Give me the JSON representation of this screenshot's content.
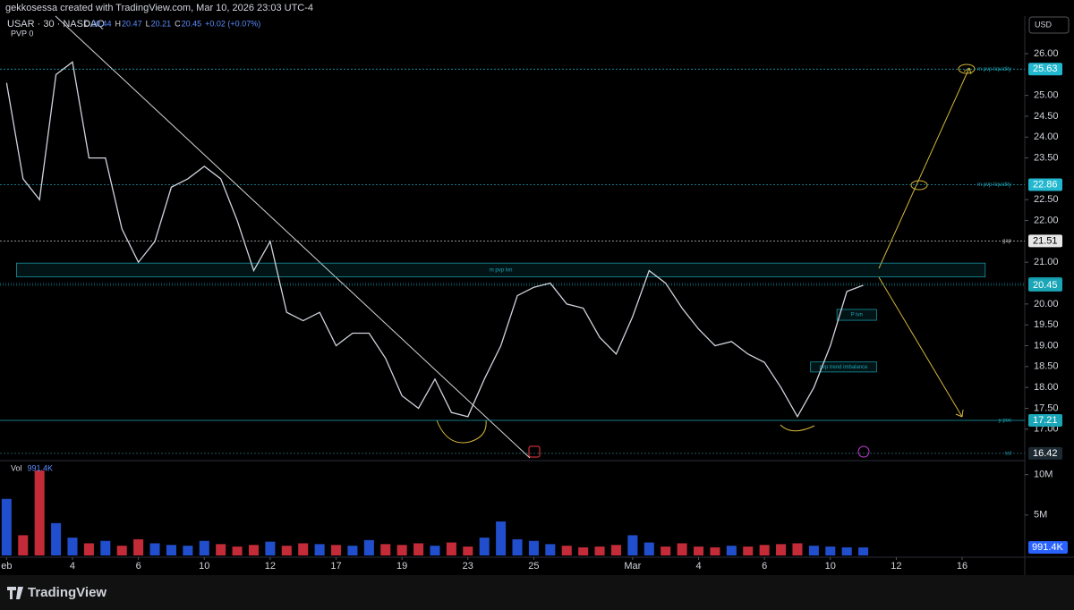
{
  "header": {
    "creator": "gekkosessa created with TradingView.com, Mar 10, 2026 23:03 UTC-4",
    "symbol": "USAR · 30 · NASDAQ",
    "ohlc": [
      {
        "label": "O",
        "value": 20.44
      },
      {
        "label": "H",
        "value": 20.47
      },
      {
        "label": "L",
        "value": 20.21
      },
      {
        "label": "C",
        "value": 20.45
      }
    ],
    "change": "+0.02 (+0.07%)",
    "indicator": "PVP  0"
  },
  "currency": "USD",
  "brand": "TradingView",
  "chart_data": [
    {
      "type": "line",
      "color": "#cfd3dc",
      "x": [
        0,
        0.5,
        1,
        1.5,
        2,
        2.5,
        3,
        3.5,
        4,
        4.5,
        5,
        5.5,
        6,
        6.5,
        7,
        7.5,
        8,
        8.5,
        9,
        9.5,
        10,
        10.5,
        11,
        11.5,
        12,
        12.5,
        13,
        13.5,
        14,
        14.5,
        15,
        15.5,
        16,
        16.5,
        17,
        17.5,
        18,
        18.5,
        19,
        19.5,
        20,
        20.5,
        21,
        21.5,
        22,
        22.5,
        23,
        23.5,
        24,
        24.5,
        25,
        25.5,
        26
      ],
      "values": [
        25.3,
        23.0,
        22.5,
        25.5,
        25.8,
        23.5,
        23.5,
        21.8,
        21.0,
        21.5,
        22.8,
        23.0,
        23.3,
        23.0,
        22.0,
        20.8,
        21.5,
        19.8,
        19.6,
        19.8,
        19.0,
        19.3,
        19.3,
        18.7,
        17.8,
        17.5,
        18.2,
        17.4,
        17.3,
        18.2,
        19.0,
        20.2,
        20.4,
        20.5,
        20.0,
        19.9,
        19.2,
        18.8,
        19.7,
        20.8,
        20.5,
        19.9,
        19.4,
        19.0,
        19.1,
        18.8,
        18.6,
        18.0,
        17.3,
        18.0,
        19.0,
        20.3,
        20.45
      ],
      "xlim": [
        -0.2,
        30.9
      ],
      "xticks": [
        {
          "value": 0,
          "label": "eb"
        },
        {
          "value": 2,
          "label": "4"
        },
        {
          "value": 4,
          "label": "6"
        },
        {
          "value": 6,
          "label": "10"
        },
        {
          "value": 8,
          "label": "12"
        },
        {
          "value": 10,
          "label": "17"
        },
        {
          "value": 12,
          "label": "19"
        },
        {
          "value": 14,
          "label": "23"
        },
        {
          "value": 16,
          "label": "25"
        },
        {
          "value": 19,
          "label": "Mar"
        },
        {
          "value": 21,
          "label": "4"
        },
        {
          "value": 23,
          "label": "6"
        },
        {
          "value": 25,
          "label": "10"
        },
        {
          "value": 27,
          "label": "12"
        },
        {
          "value": 29,
          "label": "16"
        }
      ],
      "ylim": [
        16.31,
        26.9
      ],
      "yticks": [
        {
          "value": 17,
          "label": "17.00"
        },
        {
          "value": 17.5,
          "label": "17.50"
        },
        {
          "value": 18,
          "label": "18.00"
        },
        {
          "value": 18.5,
          "label": "18.50"
        },
        {
          "value": 19,
          "label": "19.00"
        },
        {
          "value": 19.5,
          "label": "19.50"
        },
        {
          "value": 20,
          "label": "20.00"
        },
        {
          "value": 21,
          "label": "21.00"
        },
        {
          "value": 22,
          "label": "22.00"
        },
        {
          "value": 22.5,
          "label": "22.50"
        },
        {
          "value": 23.5,
          "label": "23.50"
        },
        {
          "value": 24,
          "label": "24.00"
        },
        {
          "value": 24.5,
          "label": "24.50"
        },
        {
          "value": 25,
          "label": "25.00"
        },
        {
          "value": 26,
          "label": "26.00"
        }
      ],
      "levels": [
        {
          "value": 25.63,
          "label": "m pvp liquidity",
          "color": "#22b8cf"
        },
        {
          "value": 22.86,
          "label": "m pvp liquidity",
          "color": "#22b8cf"
        },
        {
          "value": 21.51,
          "label": "gap",
          "color": "#e6e6e6"
        },
        {
          "value": 20.49,
          "color": "#1596a8"
        },
        {
          "value": 20.45,
          "color": "#1aa6b7"
        },
        {
          "value": 17.21,
          "label": "y poc",
          "color": "#1aa6b7"
        },
        {
          "value": 16.42,
          "label": "ssl",
          "color": "#1d2a33"
        }
      ],
      "zones": [
        {
          "label": "m pvp lvn",
          "x": [
            0.3,
            29.7
          ],
          "y": [
            20.65,
            20.98
          ]
        },
        {
          "label": "P lvn",
          "x": [
            25.2,
            26.4
          ],
          "y": [
            19.61,
            19.87
          ]
        },
        {
          "label": "pvp trend imbalance",
          "x": [
            24.4,
            26.4
          ],
          "y": [
            18.37,
            18.61
          ]
        }
      ]
    },
    {
      "type": "bar",
      "title": "Vol",
      "colors": {
        "up": "#2962ff",
        "down": "#f23645"
      },
      "x": [
        0,
        0.5,
        1,
        1.5,
        2,
        2.5,
        3,
        3.5,
        4,
        4.5,
        5,
        5.5,
        6,
        6.5,
        7,
        7.5,
        8,
        8.5,
        9,
        9.5,
        10,
        10.5,
        11,
        11.5,
        12,
        12.5,
        13,
        13.5,
        14,
        14.5,
        15,
        15.5,
        16,
        16.5,
        17,
        17.5,
        18,
        18.5,
        19,
        19.5,
        20,
        20.5,
        21,
        21.5,
        22,
        22.5,
        23,
        23.5,
        24,
        24.5,
        25,
        25.5,
        26
      ],
      "values": [
        7000000,
        2500000,
        10500000,
        4000000,
        2200000,
        1500000,
        1800000,
        1200000,
        2000000,
        1500000,
        1300000,
        1200000,
        1800000,
        1400000,
        1100000,
        1300000,
        1700000,
        1200000,
        1500000,
        1400000,
        1300000,
        1200000,
        1900000,
        1400000,
        1300000,
        1500000,
        1200000,
        1600000,
        1100000,
        2200000,
        4200000,
        2000000,
        1800000,
        1400000,
        1200000,
        1000000,
        1100000,
        1300000,
        2500000,
        1600000,
        1100000,
        1500000,
        1100000,
        1000000,
        1200000,
        1100000,
        1300000,
        1400000,
        1500000,
        1200000,
        1100000,
        1000000,
        991400
      ],
      "last_value": {
        "value": 991400,
        "label": "991.4K"
      },
      "ylim": [
        0,
        11400000
      ],
      "yticks": [
        {
          "value": 10000000,
          "label": "10M"
        },
        {
          "value": 5000000,
          "label": "5M"
        }
      ]
    }
  ]
}
